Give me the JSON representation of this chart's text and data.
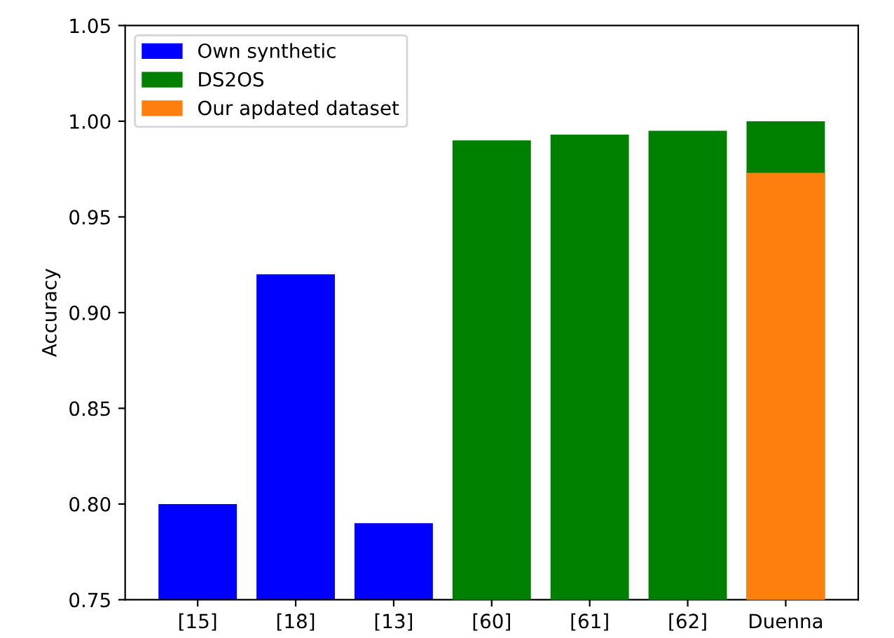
{
  "chart_data": {
    "type": "bar",
    "ylabel": "Accuracy",
    "categories": [
      "[15]",
      "[18]",
      "[13]",
      "[60]",
      "[61]",
      "[62]",
      "Duenna"
    ],
    "series": [
      {
        "name": "Own synthetic",
        "color": "#0000ff",
        "values": [
          0.8,
          0.92,
          0.79,
          null,
          null,
          null,
          null
        ]
      },
      {
        "name": "DS2OS",
        "color": "#008000",
        "values": [
          null,
          null,
          null,
          0.99,
          0.993,
          0.995,
          1.0
        ]
      },
      {
        "name": "Our apdated dataset",
        "color": "#ff7f0e",
        "values": [
          null,
          null,
          null,
          null,
          null,
          null,
          0.973
        ]
      }
    ],
    "ylim": [
      0.75,
      1.05
    ],
    "yticks": [
      0.75,
      {
        "value": 0.8,
        "label": "0.80"
      },
      0.85,
      {
        "value": 0.9,
        "label": "0.90"
      },
      0.95,
      {
        "value": 1.0,
        "label": "1.00"
      },
      1.05
    ],
    "legend": "top left",
    "grid": false
  }
}
